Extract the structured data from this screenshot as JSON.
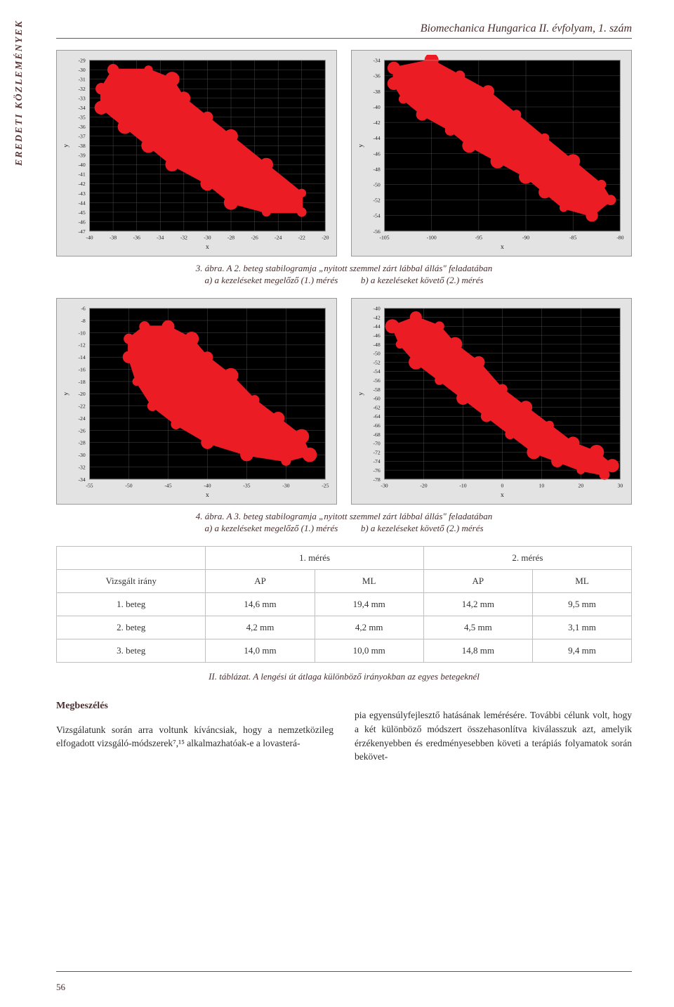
{
  "journal_header": "Biomechanica Hungarica II. évfolyam, 1. szám",
  "sidebar_label": "EREDETI KÖZLEMÉNYEK",
  "page_number": "56",
  "fig3": {
    "caption_line1": "3. ábra. A 2. beteg stabilogramja „nyitott szemmel zárt lábbal állás\" feladatában",
    "caption_line2_a": "a) a kezeléseket megelőző (1.) mérés",
    "caption_line2_b": "b) a kezeléseket követő (2.) mérés",
    "a": {
      "type": "scatter",
      "panel_bg": "#e3e3e3",
      "plot_bg": "#000000",
      "grid_color": "#4c4c4c",
      "axis_label_color": "#1a1a1a",
      "series_color": "#ec1c24",
      "x_label": "x",
      "y_label": "y",
      "xlim": [
        -40,
        -20
      ],
      "ylim": [
        -47,
        -29
      ],
      "xticks": [
        -40,
        -38,
        -36,
        -34,
        -32,
        -30,
        -28,
        -26,
        -24,
        -22,
        -20
      ],
      "yticks": [
        -47,
        -46,
        -45,
        -44,
        -43,
        -42,
        -41,
        -40,
        -39,
        -38,
        -37,
        -36,
        -35,
        -34,
        -33,
        -32,
        -31,
        -30,
        -29
      ],
      "tick_fontsize": 8,
      "cluster_polygon": [
        [
          -38,
          -30
        ],
        [
          -35,
          -30
        ],
        [
          -33,
          -31
        ],
        [
          -32,
          -33
        ],
        [
          -30,
          -35
        ],
        [
          -28,
          -37
        ],
        [
          -25,
          -40
        ],
        [
          -22,
          -43
        ],
        [
          -22,
          -45
        ],
        [
          -25,
          -45
        ],
        [
          -28,
          -44
        ],
        [
          -30,
          -42
        ],
        [
          -33,
          -40
        ],
        [
          -35,
          -38
        ],
        [
          -37,
          -36
        ],
        [
          -39,
          -34
        ],
        [
          -39,
          -32
        ]
      ]
    },
    "b": {
      "type": "scatter",
      "panel_bg": "#e3e3e3",
      "plot_bg": "#000000",
      "grid_color": "#4c4c4c",
      "axis_label_color": "#1a1a1a",
      "series_color": "#ec1c24",
      "x_label": "x",
      "y_label": "y",
      "xlim": [
        -105,
        -80
      ],
      "ylim": [
        -56,
        -34
      ],
      "xticks": [
        -105,
        -100,
        -95,
        -90,
        -85,
        -80
      ],
      "yticks": [
        -56,
        -54,
        -52,
        -50,
        -48,
        -46,
        -44,
        -42,
        -40,
        -38,
        -36,
        -34
      ],
      "tick_fontsize": 8,
      "cluster_polygon": [
        [
          -104,
          -35
        ],
        [
          -100,
          -34
        ],
        [
          -97,
          -36
        ],
        [
          -94,
          -38
        ],
        [
          -91,
          -41
        ],
        [
          -88,
          -44
        ],
        [
          -85,
          -47
        ],
        [
          -82,
          -50
        ],
        [
          -81,
          -52
        ],
        [
          -83,
          -54
        ],
        [
          -86,
          -53
        ],
        [
          -88,
          -51
        ],
        [
          -90,
          -49
        ],
        [
          -93,
          -47
        ],
        [
          -96,
          -45
        ],
        [
          -98,
          -43
        ],
        [
          -101,
          -41
        ],
        [
          -103,
          -39
        ],
        [
          -104,
          -37
        ]
      ]
    }
  },
  "fig4": {
    "caption_line1": "4. ábra. A 3. beteg stabilogramja „nyitott szemmel zárt lábbal állás\" feladatában",
    "caption_line2_a": "a) a kezeléseket megelőző (1.) mérés",
    "caption_line2_b": "b) a kezeléseket követő (2.) mérés",
    "a": {
      "type": "scatter",
      "panel_bg": "#e3e3e3",
      "plot_bg": "#000000",
      "grid_color": "#4c4c4c",
      "axis_label_color": "#1a1a1a",
      "series_color": "#ec1c24",
      "x_label": "x",
      "y_label": "y",
      "xlim": [
        -55,
        -25
      ],
      "ylim": [
        -34,
        -6
      ],
      "xticks": [
        -55,
        -50,
        -45,
        -40,
        -35,
        -30,
        -25
      ],
      "yticks": [
        -34,
        -32,
        -30,
        -28,
        -26,
        -24,
        -22,
        -20,
        -18,
        -16,
        -14,
        -12,
        -10,
        -8,
        -6
      ],
      "tick_fontsize": 8,
      "cluster_polygon": [
        [
          -48,
          -9
        ],
        [
          -45,
          -9
        ],
        [
          -42,
          -11
        ],
        [
          -40,
          -14
        ],
        [
          -37,
          -17
        ],
        [
          -34,
          -21
        ],
        [
          -31,
          -24
        ],
        [
          -28,
          -27
        ],
        [
          -27,
          -30
        ],
        [
          -30,
          -31
        ],
        [
          -35,
          -30
        ],
        [
          -40,
          -28
        ],
        [
          -44,
          -25
        ],
        [
          -47,
          -22
        ],
        [
          -49,
          -18
        ],
        [
          -50,
          -14
        ],
        [
          -50,
          -11
        ]
      ]
    },
    "b": {
      "type": "scatter",
      "panel_bg": "#e3e3e3",
      "plot_bg": "#000000",
      "grid_color": "#4c4c4c",
      "axis_label_color": "#1a1a1a",
      "series_color": "#ec1c24",
      "x_label": "x",
      "y_label": "y",
      "xlim": [
        -30,
        30
      ],
      "ylim": [
        -78,
        -40
      ],
      "xticks": [
        -30,
        -20,
        -10,
        0,
        10,
        20,
        30
      ],
      "yticks": [
        -78,
        -76,
        -74,
        -72,
        -70,
        -68,
        -66,
        -64,
        -62,
        -60,
        -58,
        -56,
        -54,
        -52,
        -50,
        -48,
        -46,
        -44,
        -42,
        -40
      ],
      "tick_fontsize": 8,
      "cluster_polygon": [
        [
          -28,
          -44
        ],
        [
          -22,
          -42
        ],
        [
          -16,
          -44
        ],
        [
          -12,
          -48
        ],
        [
          -6,
          -52
        ],
        [
          0,
          -58
        ],
        [
          6,
          -62
        ],
        [
          12,
          -66
        ],
        [
          18,
          -70
        ],
        [
          24,
          -72
        ],
        [
          28,
          -75
        ],
        [
          26,
          -77
        ],
        [
          20,
          -76
        ],
        [
          14,
          -74
        ],
        [
          8,
          -72
        ],
        [
          2,
          -68
        ],
        [
          -4,
          -64
        ],
        [
          -10,
          -60
        ],
        [
          -16,
          -56
        ],
        [
          -22,
          -52
        ],
        [
          -26,
          -48
        ]
      ]
    }
  },
  "table2": {
    "header_meres_1": "1. mérés",
    "header_meres_2": "2. mérés",
    "rowheader_irany": "Vizsgált irány",
    "col_ap": "AP",
    "col_ml": "ML",
    "rows": [
      {
        "label": "1. beteg",
        "ap1": "14,6 mm",
        "ml1": "19,4 mm",
        "ap2": "14,2 mm",
        "ml2": "9,5 mm"
      },
      {
        "label": "2. beteg",
        "ap1": "4,2 mm",
        "ml1": "4,2 mm",
        "ap2": "4,5 mm",
        "ml2": "3,1 mm"
      },
      {
        "label": "3. beteg",
        "ap1": "14,0 mm",
        "ml1": "10,0 mm",
        "ap2": "14,8 mm",
        "ml2": "9,4 mm"
      }
    ],
    "caption": "II. táblázat. A lengési út átlaga különböző irányokban az egyes betegeknél"
  },
  "body": {
    "heading": "Megbeszélés",
    "col1": "Vizsgálatunk során arra voltunk kíváncsiak, hogy a nemzetközileg elfogadott vizsgáló-módszerek⁷,¹⁵ alkalmazhatóak-e a lovasterá-",
    "col2": "pia egyensúlyfejlesztő hatásának lemérésére. További célunk volt, hogy a két különböző módszert összehasonlítva kiválasszuk azt, amelyik érzékenyebben és eredményesebben követi a terápiás folyamatok során bekövet-"
  }
}
